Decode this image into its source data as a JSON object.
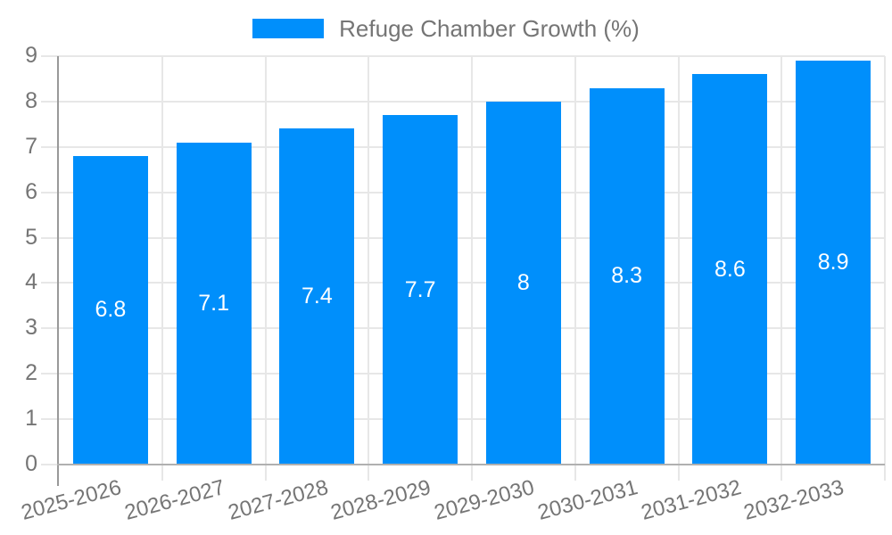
{
  "chart_data": {
    "type": "bar",
    "legend_label": "Refuge Chamber Growth (%)",
    "legend_position": "top",
    "categories": [
      "2025-2026",
      "2026-2027",
      "2027-2028",
      "2028-2029",
      "2029-2030",
      "2030-2031",
      "2031-2032",
      "2032-2033"
    ],
    "series": [
      {
        "name": "Refuge Chamber Growth (%)",
        "values": [
          6.8,
          7.1,
          7.4,
          7.7,
          8,
          8.3,
          8.6,
          8.9
        ]
      }
    ],
    "value_labels": [
      "6.8",
      "7.1",
      "7.4",
      "7.7",
      "8",
      "8.3",
      "8.6",
      "8.9"
    ],
    "xlabel": "",
    "ylabel": "",
    "ylim": [
      0,
      9
    ],
    "yticks": [
      0,
      1,
      2,
      3,
      4,
      5,
      6,
      7,
      8,
      9
    ],
    "grid": true,
    "colors": {
      "bar": "#008FFB",
      "axis_text": "#757575",
      "bar_value_text": "#ffffff",
      "gridline": "#e7e7e7",
      "y_axis_line": "#999999",
      "x_axis_line": "#b0b0b0",
      "background": "#ffffff"
    }
  }
}
